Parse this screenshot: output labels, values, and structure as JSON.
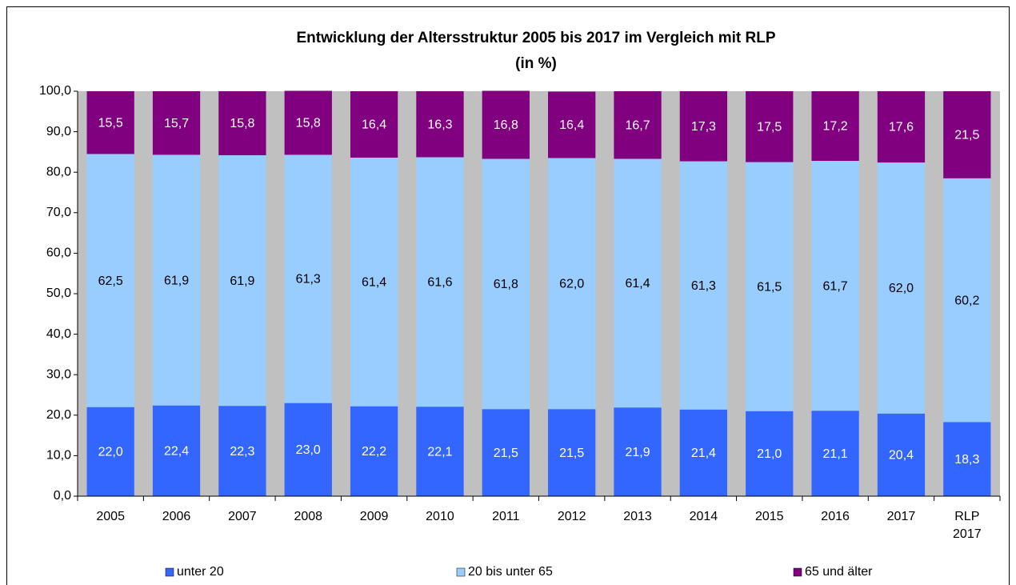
{
  "chart_data": {
    "type": "stacked_bar",
    "title": "Entwicklung der Altersstruktur 2005 bis 2017 im Vergleich mit RLP",
    "subtitle": "(in %)",
    "categories": [
      "2005",
      "2006",
      "2007",
      "2008",
      "2009",
      "2010",
      "2011",
      "2012",
      "2013",
      "2014",
      "2015",
      "2016",
      "2017",
      "RLP 2017"
    ],
    "series": [
      {
        "name": "unter 20",
        "color": "#3366ff",
        "label_color": "#ffffff",
        "values": [
          22.0,
          22.4,
          22.3,
          23.0,
          22.2,
          22.1,
          21.5,
          21.5,
          21.9,
          21.4,
          21.0,
          21.1,
          20.4,
          18.3
        ],
        "value_labels": [
          "22,0",
          "22,4",
          "22,3",
          "23,0",
          "22,2",
          "22,1",
          "21,5",
          "21,5",
          "21,9",
          "21,4",
          "21,0",
          "21,1",
          "20,4",
          "18,3"
        ]
      },
      {
        "name": "20 bis unter 65",
        "color": "#99ccff",
        "label_color": "#000000",
        "values": [
          62.5,
          61.9,
          61.9,
          61.3,
          61.4,
          61.6,
          61.8,
          62.0,
          61.4,
          61.3,
          61.5,
          61.7,
          62.0,
          60.2
        ],
        "value_labels": [
          "62,5",
          "61,9",
          "61,9",
          "61,3",
          "61,4",
          "61,6",
          "61,8",
          "62,0",
          "61,4",
          "61,3",
          "61,5",
          "61,7",
          "62,0",
          "60,2"
        ]
      },
      {
        "name": "65 und älter",
        "color": "#800080",
        "label_color": "#ffffff",
        "values": [
          15.5,
          15.7,
          15.8,
          15.8,
          16.4,
          16.3,
          16.8,
          16.4,
          16.7,
          17.3,
          17.5,
          17.2,
          17.6,
          21.5
        ],
        "value_labels": [
          "15,5",
          "15,7",
          "15,8",
          "15,8",
          "16,4",
          "16,3",
          "16,8",
          "16,4",
          "16,7",
          "17,3",
          "17,5",
          "17,2",
          "17,6",
          "21,5"
        ]
      }
    ],
    "ylim": [
      0,
      100
    ],
    "yticks": [
      {
        "value": 0,
        "label": "0,0"
      },
      {
        "value": 10,
        "label": "10,0"
      },
      {
        "value": 20,
        "label": "20,0"
      },
      {
        "value": 30,
        "label": "30,0"
      },
      {
        "value": 40,
        "label": "40,0"
      },
      {
        "value": 50,
        "label": "50,0"
      },
      {
        "value": 60,
        "label": "60,0"
      },
      {
        "value": 70,
        "label": "70,0"
      },
      {
        "value": 80,
        "label": "80,0"
      },
      {
        "value": 90,
        "label": "90,0"
      },
      {
        "value": 100,
        "label": "100,0"
      }
    ],
    "plot_background": "#c0c0c0",
    "grid": false,
    "legend": "bottom"
  }
}
